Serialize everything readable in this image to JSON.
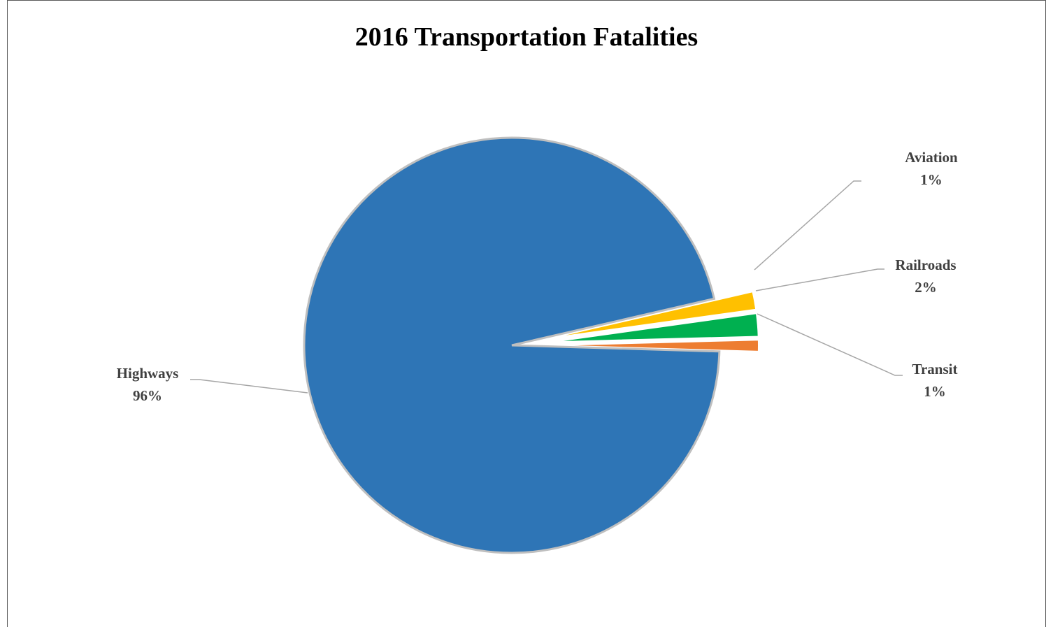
{
  "chart_data": {
    "type": "pie",
    "title": "2016 Transportation Fatalities",
    "slices": [
      {
        "name": "Highways",
        "label": "96%",
        "value": 96.5,
        "color": "#2e75b6"
      },
      {
        "name": "Transit",
        "label": "1%",
        "value": 0.9,
        "color": "#ed7d31"
      },
      {
        "name": "Railroads",
        "label": "2%",
        "value": 1.8,
        "color": "#00b050"
      },
      {
        "name": "Aviation",
        "label": "1%",
        "value": 1.4,
        "color": "#ffc000"
      }
    ],
    "start_direction": "3 o'clock, counter-clockwise",
    "exploded_slices": [
      "Transit",
      "Railroads",
      "Aviation"
    ],
    "leader_line_color": "#a6a6a6",
    "slice_border_color": "#bfbfbf"
  }
}
